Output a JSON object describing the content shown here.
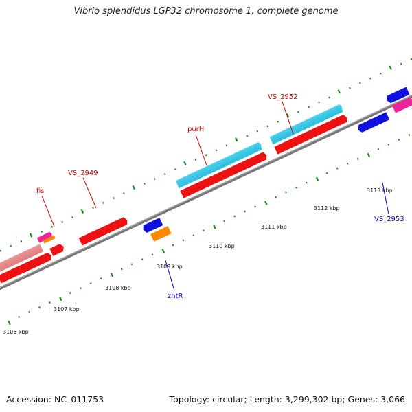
{
  "title": "Vibrio splendidus LGP32 chromosome 1, complete genome",
  "accession": "Accession: NC_011753",
  "summary": "Topology: circular; Length: 3,299,302 bp; Genes: 3,066",
  "tick_labels": [
    "3106 kbp",
    "3107 kbp",
    "3108 kbp",
    "3109 kbp",
    "3110 kbp",
    "3111 kbp",
    "3112 kbp",
    "3113 kbp"
  ],
  "gene_labels": {
    "fis": "fis",
    "vs2949": "VS_2949",
    "purH": "purH",
    "vs2952": "VS_2952",
    "zntR": "zntR",
    "vs2953": "VS_2953"
  },
  "colors": {
    "backbone": "#777777",
    "red": "#ee1111",
    "lightred": "#ee8888",
    "cyan": "#33ccee",
    "blue": "#1111dd",
    "orange": "#ff8800",
    "magenta": "#ee2299",
    "tick": "#228822",
    "label_red": "#cc0000",
    "label_blue": "#0000cc"
  }
}
